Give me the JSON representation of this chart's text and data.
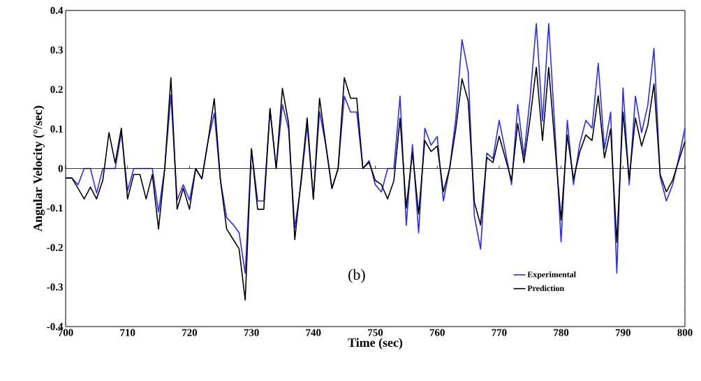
{
  "chart_data": {
    "type": "line",
    "xlabel": "Time (sec)",
    "ylabel": "Angular Velocity (°/sec)",
    "x": [
      700,
      701,
      702,
      703,
      704,
      705,
      706,
      707,
      708,
      709,
      710,
      711,
      712,
      713,
      714,
      715,
      716,
      717,
      718,
      719,
      720,
      721,
      722,
      723,
      724,
      725,
      726,
      727,
      728,
      729,
      730,
      731,
      732,
      733,
      734,
      735,
      736,
      737,
      738,
      739,
      740,
      741,
      742,
      743,
      744,
      745,
      746,
      747,
      748,
      749,
      750,
      751,
      752,
      753,
      754,
      755,
      756,
      757,
      758,
      759,
      760,
      761,
      762,
      763,
      764,
      765,
      766,
      767,
      768,
      769,
      770,
      771,
      772,
      773,
      774,
      775,
      776,
      777,
      778,
      779,
      780,
      781,
      782,
      783,
      784,
      785,
      786,
      787,
      788,
      789,
      790,
      791,
      792,
      793,
      794,
      795,
      796,
      797,
      798,
      799,
      800
    ],
    "series": [
      {
        "name": "Experimental",
        "color": "#2a2aff",
        "values": [
          -0.024,
          -0.024,
          -0.041,
          0,
          0,
          -0.062,
          0,
          0,
          0,
          0.091,
          -0.056,
          0,
          0,
          0,
          0,
          -0.11,
          0,
          0.186,
          -0.08,
          -0.041,
          -0.08,
          0,
          -0.026,
          0.07,
          0.14,
          -0.03,
          -0.124,
          -0.141,
          -0.162,
          -0.265,
          0.05,
          -0.082,
          -0.082,
          0.15,
          0,
          0.162,
          0.1,
          -0.15,
          -0.04,
          0.11,
          -0.075,
          0.144,
          0.06,
          -0.05,
          0,
          0.183,
          0.143,
          0.143,
          0,
          0.02,
          -0.041,
          -0.059,
          0,
          0,
          0.183,
          -0.144,
          0.061,
          -0.163,
          0.102,
          0.059,
          0.081,
          -0.082,
          0,
          0.127,
          0.326,
          0.244,
          -0.121,
          -0.204,
          0.039,
          0.025,
          0.122,
          0.044,
          -0.041,
          0.162,
          0.032,
          0.18,
          0.367,
          0.12,
          0.367,
          0.1,
          -0.186,
          0.122,
          -0.041,
          0.062,
          0.122,
          0.102,
          0.266,
          0.05,
          0.143,
          -0.265,
          0.204,
          -0.041,
          0.183,
          0.091,
          0.16,
          0.304,
          -0.021,
          -0.082,
          -0.041,
          0.026,
          0.102
        ]
      },
      {
        "name": "Prediction",
        "color": "#000000",
        "values": [
          -0.024,
          -0.024,
          -0.05,
          -0.077,
          -0.047,
          -0.077,
          -0.03,
          0.091,
          0.014,
          0.102,
          -0.077,
          -0.015,
          -0.015,
          -0.077,
          -0.015,
          -0.153,
          0,
          0.23,
          -0.103,
          -0.05,
          -0.103,
          0,
          -0.026,
          0.07,
          0.177,
          -0.03,
          -0.153,
          -0.178,
          -0.203,
          -0.333,
          0.05,
          -0.103,
          -0.103,
          0.152,
          0,
          0.203,
          0.115,
          -0.18,
          -0.032,
          0.128,
          -0.078,
          0.178,
          0.062,
          -0.051,
          0,
          0.23,
          0.178,
          0.178,
          0,
          0.016,
          -0.03,
          -0.041,
          -0.077,
          -0.031,
          0.127,
          -0.1,
          0.041,
          -0.115,
          0.071,
          0.043,
          0.057,
          -0.059,
          0,
          0.1,
          0.227,
          0.171,
          -0.085,
          -0.143,
          0.028,
          0.015,
          0.082,
          0.026,
          -0.03,
          0.114,
          0.015,
          0.127,
          0.256,
          0.071,
          0.256,
          0.06,
          -0.13,
          0.085,
          -0.027,
          0.041,
          0.085,
          0.071,
          0.184,
          0.027,
          0.1,
          -0.187,
          0.143,
          -0.027,
          0.128,
          0.057,
          0.109,
          0.214,
          -0.015,
          -0.059,
          -0.03,
          0.02,
          0.068
        ]
      }
    ],
    "xlim": [
      700,
      800
    ],
    "ylim": [
      -0.4,
      0.4
    ],
    "xticks": [
      700,
      710,
      720,
      730,
      740,
      750,
      760,
      770,
      780,
      790,
      800
    ],
    "yticks": [
      -0.4,
      -0.3,
      -0.2,
      -0.1,
      0,
      0.1,
      0.2,
      0.3,
      0.4
    ],
    "ref_lines": [
      {
        "axis": "y",
        "value": 0,
        "color": "#000000"
      }
    ],
    "annotations": [
      "(b)"
    ],
    "legend": "bottom right",
    "grid": false,
    "marker": "none",
    "line_style": "solid"
  }
}
